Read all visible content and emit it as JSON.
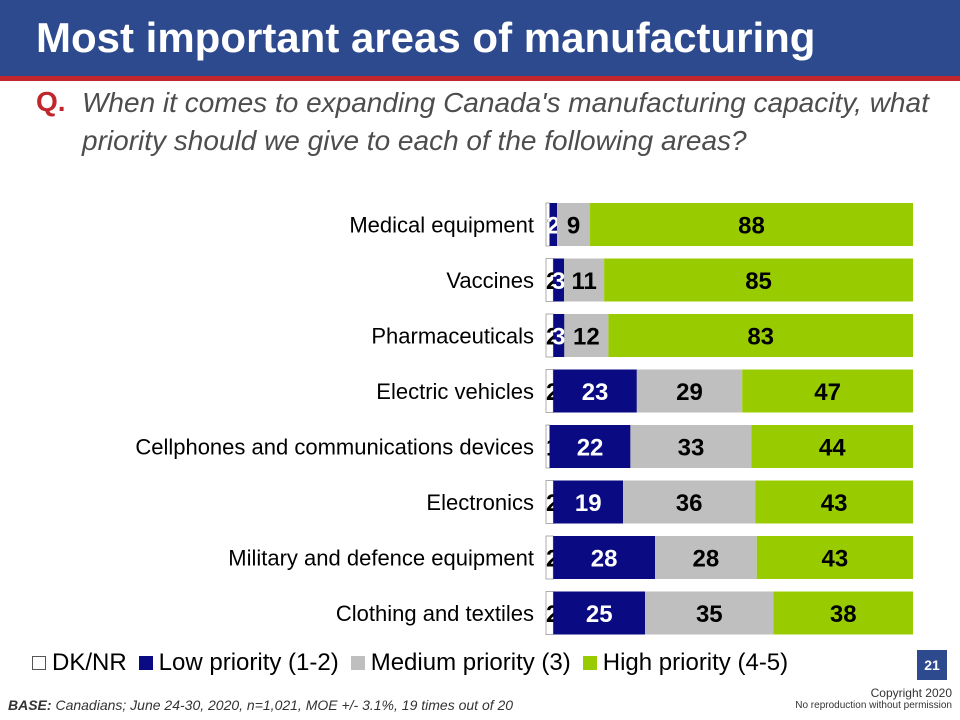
{
  "title": "Most important areas of manufacturing",
  "question": {
    "marker": "Q.",
    "text": "When it comes to expanding Canada's manufacturing capacity, what priority should we give to each of the following areas?"
  },
  "chart_data": {
    "type": "bar",
    "orientation": "horizontal",
    "stacked": true,
    "percent_of_total": true,
    "categories": [
      "Medical equipment",
      "Vaccines",
      "Pharmaceuticals",
      "Electric vehicles",
      "Cellphones and communications devices",
      "Electronics",
      "Military and defence equipment",
      "Clothing and textiles"
    ],
    "series": [
      {
        "name": "DK/NR",
        "color": "#ffffff",
        "values": [
          1,
          2,
          2,
          2,
          1,
          2,
          2,
          2
        ]
      },
      {
        "name": "Low priority (1-2)",
        "color": "#0a0a82",
        "values": [
          2,
          3,
          3,
          23,
          22,
          19,
          28,
          25
        ]
      },
      {
        "name": "Medium priority (3)",
        "color": "#bfbfbf",
        "values": [
          9,
          11,
          12,
          29,
          33,
          36,
          28,
          35
        ]
      },
      {
        "name": "High priority (4-5)",
        "color": "#99cc00",
        "values": [
          88,
          85,
          83,
          47,
          44,
          43,
          43,
          38
        ]
      }
    ],
    "legend_position": "bottom",
    "grid": false
  },
  "page_number": "21",
  "base": {
    "label": "BASE:",
    "text": "Canadians; June 24-30, 2020, n=1,021, MOE +/- 3.1%, 19 times out of 20"
  },
  "copyright": {
    "line1": "Copyright 2020",
    "line2": "No reproduction without permission"
  },
  "colors": {
    "title_bar": "#2e4a8e",
    "accent_red": "#c0262c"
  }
}
